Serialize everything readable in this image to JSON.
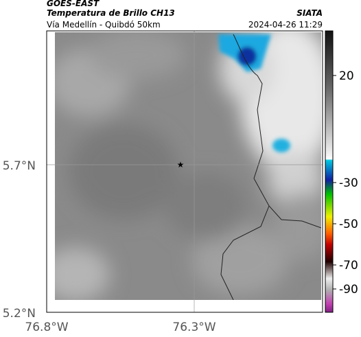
{
  "header": {
    "source": "GOES-EAST",
    "title": "Temperatura de Brillo CH13",
    "subtitle": "Vía Medellín - Quibdó 50km",
    "organization": "SIATA",
    "timestamp": "2024-04-26 11:29"
  },
  "axes": {
    "latitude_labels": [
      "5.7°N",
      "5.2°N"
    ],
    "longitude_labels": [
      "76.8°W",
      "76.3°W"
    ]
  },
  "colorbar": {
    "ticks": [
      20,
      -30,
      -50,
      -70,
      -90
    ]
  }
}
